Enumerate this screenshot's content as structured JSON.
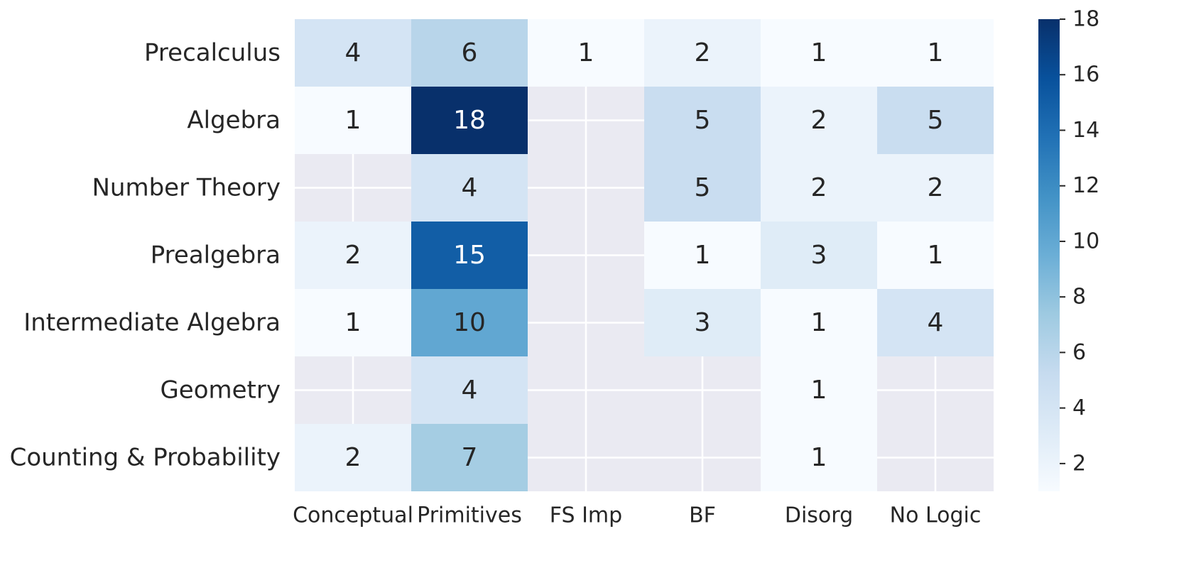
{
  "chart_data": {
    "type": "heatmap",
    "title": "",
    "xlabel": "",
    "ylabel": "",
    "rows": [
      "Precalculus",
      "Algebra",
      "Number Theory",
      "Prealgebra",
      "Intermediate Algebra",
      "Geometry",
      "Counting & Probability"
    ],
    "columns": [
      "Conceptual",
      "Primitives",
      "FS Imp",
      "BF",
      "Disorg",
      "No Logic"
    ],
    "values": [
      [
        4,
        6,
        1,
        2,
        1,
        1
      ],
      [
        1,
        18,
        null,
        5,
        2,
        5
      ],
      [
        null,
        4,
        null,
        5,
        2,
        2
      ],
      [
        2,
        15,
        null,
        1,
        3,
        1
      ],
      [
        1,
        10,
        null,
        3,
        1,
        4
      ],
      [
        null,
        4,
        null,
        null,
        1,
        null
      ],
      [
        2,
        7,
        null,
        null,
        1,
        null
      ]
    ],
    "missing_color": "#eaeaf2",
    "grid": true,
    "colormap": "Blues",
    "colorbar": {
      "min": 1,
      "max": 18,
      "ticks": [
        2,
        4,
        6,
        8,
        10,
        12,
        14,
        16,
        18
      ],
      "placement": "right"
    }
  }
}
